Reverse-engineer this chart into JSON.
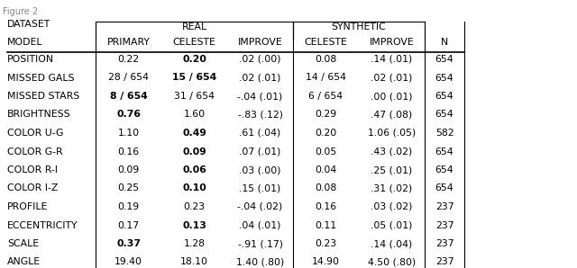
{
  "header_row2": [
    "MODEL",
    "PRIMARY",
    "CELESTE",
    "IMPROVE",
    "CELESTE",
    "IMPROVE",
    "N"
  ],
  "rows": [
    [
      "POSITION",
      "0.22",
      "0.20",
      ".02 (.00)",
      "0.08",
      ".14 (.01)",
      "654"
    ],
    [
      "MISSED GALS",
      "28 / 654",
      "15 / 654",
      ".02 (.01)",
      "14 / 654",
      ".02 (.01)",
      "654"
    ],
    [
      "MISSED STARS",
      "8 / 654",
      "31 / 654",
      "-.04 (.01)",
      "6 / 654",
      ".00 (.01)",
      "654"
    ],
    [
      "BRIGHTNESS",
      "0.76",
      "1.60",
      "-.83 (.12)",
      "0.29",
      ".47 (.08)",
      "654"
    ],
    [
      "COLOR U-G",
      "1.10",
      "0.49",
      ".61 (.04)",
      "0.20",
      "1.06 (.05)",
      "582"
    ],
    [
      "COLOR G-R",
      "0.16",
      "0.09",
      ".07 (.01)",
      "0.05",
      ".43 (.02)",
      "654"
    ],
    [
      "COLOR R-I",
      "0.09",
      "0.06",
      ".03 (.00)",
      "0.04",
      ".25 (.01)",
      "654"
    ],
    [
      "COLOR I-Z",
      "0.25",
      "0.10",
      ".15 (.01)",
      "0.08",
      ".31 (.02)",
      "654"
    ],
    [
      "PROFILE",
      "0.19",
      "0.23",
      "-.04 (.02)",
      "0.16",
      ".03 (.02)",
      "237"
    ],
    [
      "ECCENTRICITY",
      "0.17",
      "0.13",
      ".04 (.01)",
      "0.11",
      ".05 (.01)",
      "237"
    ],
    [
      "SCALE",
      "0.37",
      "1.28",
      "-.91 (.17)",
      "0.23",
      ".14 (.04)",
      "237"
    ],
    [
      "ANGLE",
      "19.40",
      "18.10",
      "1.40 (.80)",
      "14.90",
      "4.50 (.80)",
      "237"
    ]
  ],
  "bold_display": {
    "0": [
      2
    ],
    "1": [
      2
    ],
    "2": [
      1
    ],
    "3": [
      1
    ],
    "4": [
      2
    ],
    "5": [
      2
    ],
    "6": [
      2
    ],
    "7": [
      2
    ],
    "8": [],
    "9": [
      2
    ],
    "10": [
      1
    ],
    "11": []
  },
  "dataset_label": "DATASET",
  "real_label": "REAL",
  "synthetic_label": "SYNTHETIC",
  "bg_color": "#ffffff",
  "text_color": "#000000",
  "fig2_text": "Figure 2",
  "fontsize": 7.8,
  "fig_width": 6.4,
  "fig_height": 2.98
}
